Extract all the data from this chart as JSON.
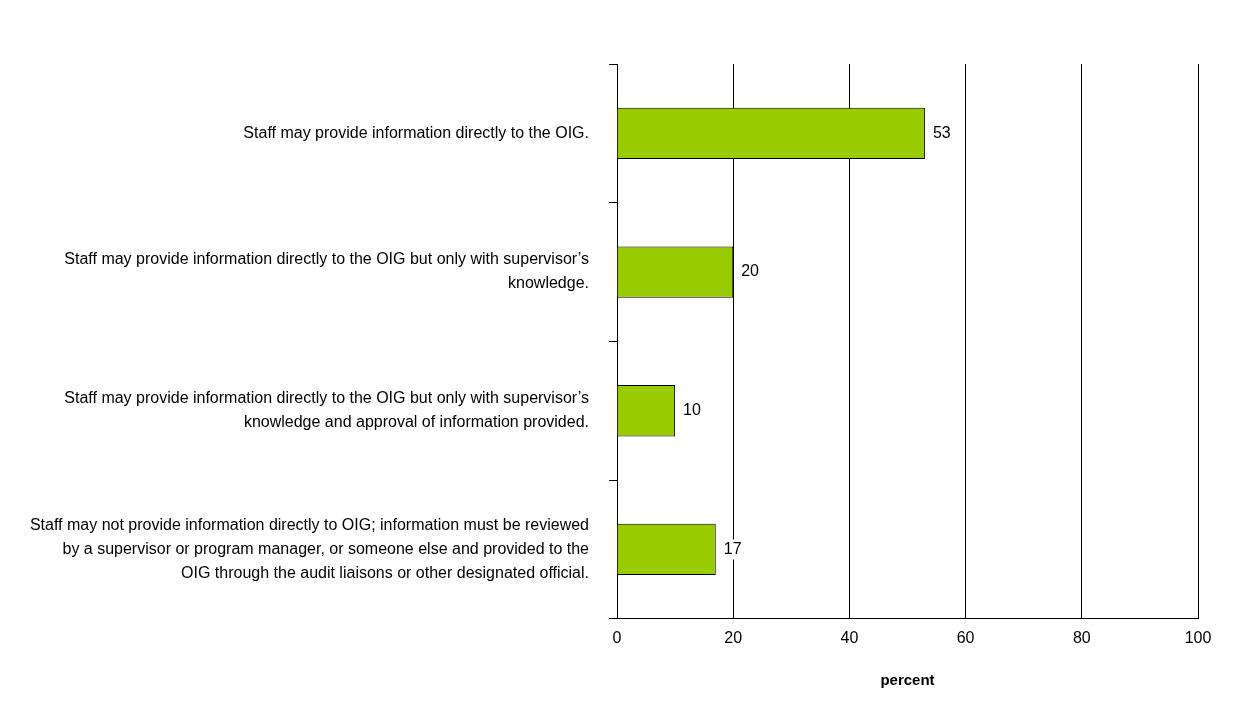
{
  "chart_data": {
    "type": "bar",
    "orientation": "horizontal",
    "xlabel": "percent",
    "categories": [
      "Staff may provide information directly to the OIG.",
      "Staff may provide information directly to the OIG but only with supervisor’s knowledge.",
      "Staff may provide information directly to the OIG but only with supervisor’s knowledge and approval of information provided.",
      "Staff may not provide information directly to OIG; information must be reviewed by a supervisor or program manager, or someone else and provided to the OIG through the audit liaisons or other designated official."
    ],
    "values": [
      53,
      20,
      10,
      17
    ],
    "color": "#99cc00",
    "xlim": [
      0,
      100
    ],
    "xticks": [
      0,
      20,
      40,
      60,
      80,
      100
    ],
    "grid": "x",
    "data_labels": true,
    "legend": false
  }
}
